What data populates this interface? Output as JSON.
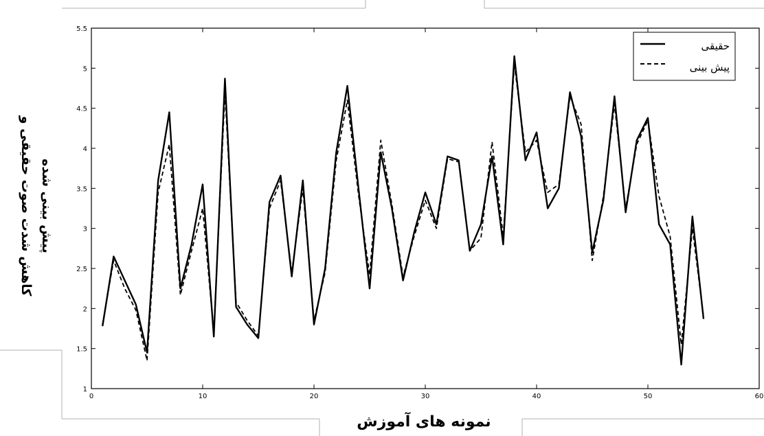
{
  "chart_data": {
    "type": "line",
    "xlabel": "نمونه های آموزش",
    "ylabel_line1": "کاهش شدت صوت حقیقی و",
    "ylabel_line2": "پیش بینی شده",
    "xlim": [
      0,
      60
    ],
    "ylim": [
      1,
      5.5
    ],
    "xticks": [
      0,
      10,
      20,
      30,
      40,
      50,
      60
    ],
    "yticks": [
      1,
      1.5,
      2,
      2.5,
      3,
      3.5,
      4,
      4.5,
      5,
      5.5
    ],
    "xtick_labels": [
      "0",
      "10",
      "20",
      "30",
      "40",
      "50",
      "60"
    ],
    "ytick_labels": [
      "1",
      "1.5",
      "2",
      "2.5",
      "3",
      "3.5",
      "4",
      "4.5",
      "5",
      "5.5"
    ],
    "grid": false,
    "legend_position": "top-right",
    "x": [
      1,
      2,
      3,
      4,
      5,
      6,
      7,
      8,
      9,
      10,
      11,
      12,
      13,
      14,
      15,
      16,
      17,
      18,
      19,
      20,
      21,
      22,
      23,
      24,
      25,
      26,
      27,
      28,
      29,
      30,
      31,
      32,
      33,
      34,
      35,
      36,
      37,
      38,
      39,
      40,
      41,
      42,
      43,
      44,
      45,
      46,
      47,
      48,
      49,
      50,
      51,
      52,
      53,
      54,
      55
    ],
    "series": [
      {
        "name": "حقیقی",
        "style": "solid",
        "color": "#000000",
        "values": [
          1.78,
          2.65,
          2.35,
          2.05,
          1.45,
          3.6,
          4.45,
          2.25,
          2.8,
          3.55,
          1.65,
          4.87,
          2.02,
          1.8,
          1.63,
          3.33,
          3.66,
          2.4,
          3.6,
          1.8,
          2.5,
          3.95,
          4.78,
          3.5,
          2.25,
          3.95,
          3.25,
          2.35,
          2.95,
          3.45,
          3.05,
          3.9,
          3.85,
          2.72,
          3.05,
          3.9,
          2.8,
          5.15,
          3.85,
          4.2,
          3.25,
          3.5,
          4.7,
          4.15,
          2.7,
          3.35,
          4.65,
          3.2,
          4.1,
          4.38,
          3.05,
          2.8,
          1.3,
          3.15,
          1.87
        ]
      },
      {
        "name": "پیش بینی",
        "style": "dashed",
        "color": "#000000",
        "values": [
          1.8,
          2.6,
          2.25,
          1.98,
          1.35,
          3.45,
          4.05,
          2.17,
          2.72,
          3.25,
          1.7,
          4.7,
          2.08,
          1.85,
          1.66,
          3.25,
          3.6,
          2.45,
          3.5,
          1.85,
          2.45,
          3.85,
          4.6,
          3.42,
          2.42,
          4.1,
          3.3,
          2.4,
          2.9,
          3.35,
          3.0,
          3.87,
          3.83,
          2.72,
          2.88,
          4.08,
          2.9,
          5.05,
          3.95,
          4.1,
          3.45,
          3.55,
          4.65,
          4.3,
          2.6,
          3.4,
          4.55,
          3.25,
          4.05,
          4.35,
          3.4,
          2.9,
          1.55,
          3.0,
          1.9
        ]
      }
    ]
  }
}
